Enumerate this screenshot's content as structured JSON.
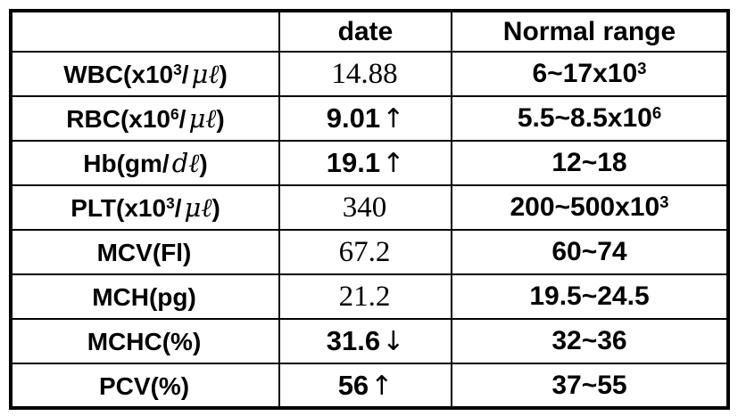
{
  "table": {
    "header": {
      "parameter": "",
      "date": "date",
      "normal_range": "Normal range"
    },
    "rows": [
      {
        "name": "WBC",
        "label": {
          "pre": "WBC(x10",
          "sup": "3",
          "slash": "/",
          "unit": "μℓ",
          "post": ")"
        },
        "value": {
          "text": "14.88",
          "arrow": "",
          "flag": "normal"
        },
        "range": {
          "pre": "6~17x10",
          "sup": "3"
        }
      },
      {
        "name": "RBC",
        "label": {
          "pre": "RBC(x10",
          "sup": "6",
          "slash": "/",
          "unit": "μℓ",
          "post": ")"
        },
        "value": {
          "text": "9.01",
          "arrow": "↑",
          "flag": "high"
        },
        "range": {
          "pre": "5.5~8.5x10",
          "sup": "6"
        }
      },
      {
        "name": "Hb",
        "label": {
          "pre": "Hb(gm/",
          "sup": "",
          "slash": "",
          "unit": "dℓ",
          "post": ")"
        },
        "value": {
          "text": "19.1",
          "arrow": "↑",
          "flag": "high"
        },
        "range": {
          "pre": "12~18",
          "sup": ""
        }
      },
      {
        "name": "PLT",
        "label": {
          "pre": "PLT(x10",
          "sup": "3",
          "slash": "/",
          "unit": "μℓ",
          "post": ")"
        },
        "value": {
          "text": "340",
          "arrow": "",
          "flag": "normal"
        },
        "range": {
          "pre": "200~500x10",
          "sup": "3"
        }
      },
      {
        "name": "MCV",
        "label": {
          "pre": "MCV(Fl)",
          "sup": "",
          "slash": "",
          "unit": "",
          "post": ""
        },
        "value": {
          "text": "67.2",
          "arrow": "",
          "flag": "normal"
        },
        "range": {
          "pre": "60~74",
          "sup": ""
        }
      },
      {
        "name": "MCH",
        "label": {
          "pre": "MCH(pg)",
          "sup": "",
          "slash": "",
          "unit": "",
          "post": ""
        },
        "value": {
          "text": "21.2",
          "arrow": "",
          "flag": "normal"
        },
        "range": {
          "pre": "19.5~24.5",
          "sup": ""
        }
      },
      {
        "name": "MCHC",
        "label": {
          "pre": "MCHC(%)",
          "sup": "",
          "slash": "",
          "unit": "",
          "post": ""
        },
        "value": {
          "text": "31.6",
          "arrow": "↓",
          "flag": "low"
        },
        "range": {
          "pre": "32~36",
          "sup": ""
        }
      },
      {
        "name": "PCV",
        "label": {
          "pre": "PCV(%)",
          "sup": "",
          "slash": "",
          "unit": "",
          "post": ""
        },
        "value": {
          "text": "56",
          "arrow": "↑",
          "flag": "high"
        },
        "range": {
          "pre": "37~55",
          "sup": ""
        }
      }
    ]
  },
  "chart_data": {
    "type": "table",
    "title": "",
    "columns": [
      "",
      "date",
      "Normal range"
    ],
    "rows": [
      [
        "WBC(x10³/μℓ)",
        "14.88",
        "6~17x10³"
      ],
      [
        "RBC(x10⁶/μℓ)",
        "9.01↑",
        "5.5~8.5x10⁶"
      ],
      [
        "Hb(gm/dℓ)",
        "19.1↑",
        "12~18"
      ],
      [
        "PLT(x10³/μℓ)",
        "340",
        "200~500x10³"
      ],
      [
        "MCV(Fl)",
        "67.2",
        "60~74"
      ],
      [
        "MCH(pg)",
        "21.2",
        "19.5~24.5"
      ],
      [
        "MCHC(%)",
        "31.6↓",
        "32~36"
      ],
      [
        "PCV(%)",
        "56↑",
        "37~55"
      ]
    ],
    "flags": [
      "normal",
      "high",
      "high",
      "normal",
      "normal",
      "normal",
      "low",
      "high"
    ],
    "colors": {
      "text": "#000000",
      "border": "#000000",
      "background": "#ffffff"
    }
  }
}
